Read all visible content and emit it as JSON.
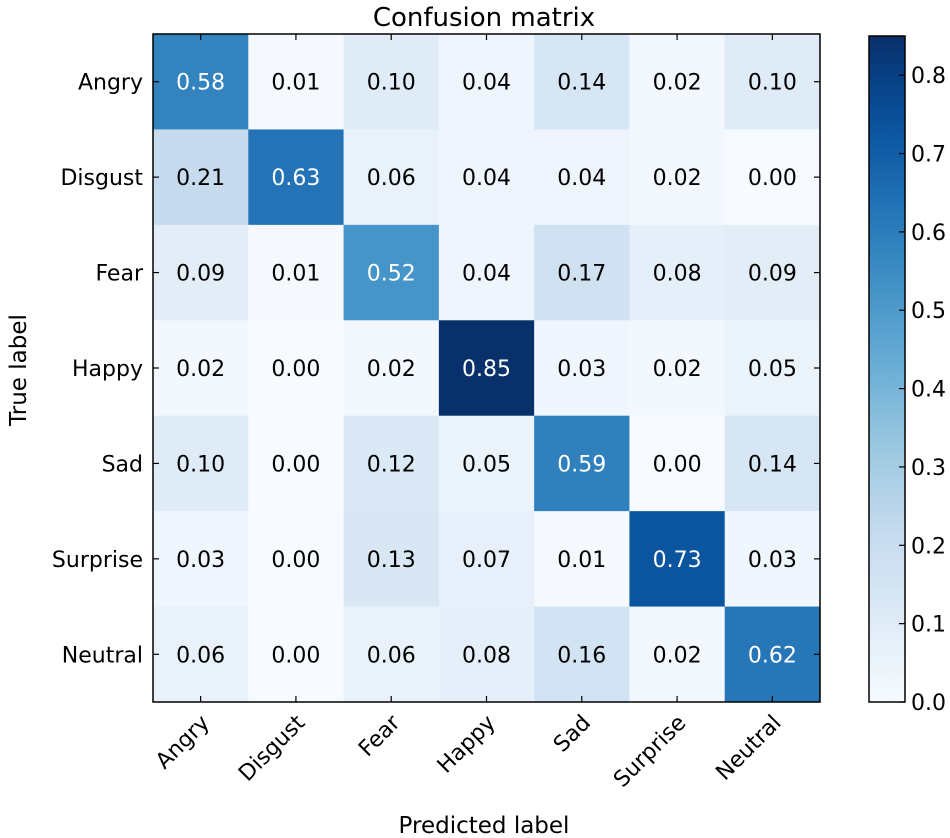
{
  "chart_data": {
    "type": "heatmap",
    "title": "Confusion matrix",
    "xlabel": "Predicted label",
    "ylabel": "True label",
    "x_categories": [
      "Angry",
      "Disgust",
      "Fear",
      "Happy",
      "Sad",
      "Surprise",
      "Neutral"
    ],
    "y_categories": [
      "Angry",
      "Disgust",
      "Fear",
      "Happy",
      "Sad",
      "Surprise",
      "Neutral"
    ],
    "values": [
      [
        0.58,
        0.01,
        0.1,
        0.04,
        0.14,
        0.02,
        0.1
      ],
      [
        0.21,
        0.63,
        0.06,
        0.04,
        0.04,
        0.02,
        0.0
      ],
      [
        0.09,
        0.01,
        0.52,
        0.04,
        0.17,
        0.08,
        0.09
      ],
      [
        0.02,
        0.0,
        0.02,
        0.85,
        0.03,
        0.02,
        0.05
      ],
      [
        0.1,
        0.0,
        0.12,
        0.05,
        0.59,
        0.0,
        0.14
      ],
      [
        0.03,
        0.0,
        0.13,
        0.07,
        0.01,
        0.73,
        0.03
      ],
      [
        0.06,
        0.0,
        0.06,
        0.08,
        0.16,
        0.02,
        0.62
      ]
    ],
    "colormap": "Blues",
    "color_range": [
      0.0,
      0.85
    ],
    "colorbar_ticks": [
      "0.0",
      "0.1",
      "0.2",
      "0.3",
      "0.4",
      "0.5",
      "0.6",
      "0.7",
      "0.8"
    ],
    "text_color_dark_cells": "#ffffff",
    "text_color_light_cells": "#000000",
    "grid": false,
    "colorbar_position": "right"
  }
}
